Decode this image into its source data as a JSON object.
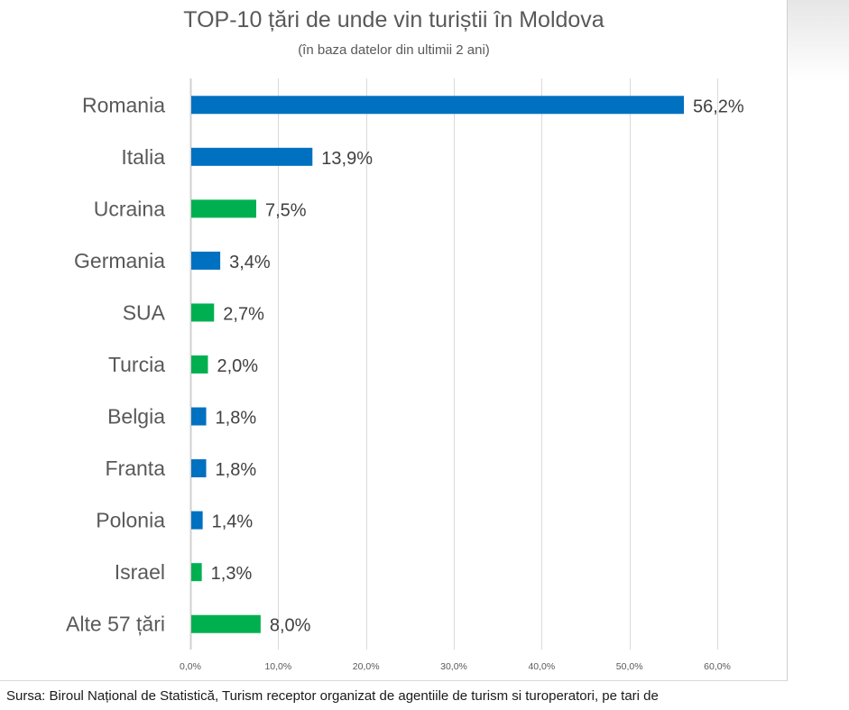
{
  "chart_data": {
    "type": "bar",
    "orientation": "horizontal",
    "title": "TOP-10 țări de unde vin turiștii în Moldova",
    "subtitle": "(în baza datelor din ultimii 2 ani)",
    "xlabel": "",
    "ylabel": "",
    "xlim": [
      0,
      60
    ],
    "grid": true,
    "x_ticks": [
      "0,0%",
      "10,0%",
      "20,0%",
      "30,0%",
      "40,0%",
      "50,0%",
      "60,0%"
    ],
    "x_tick_values": [
      0,
      10,
      20,
      30,
      40,
      50,
      60
    ],
    "categories": [
      "Romania",
      "Italia",
      "Ucraina",
      "Germania",
      "SUA",
      "Turcia",
      "Belgia",
      "Franta",
      "Polonia",
      "Israel",
      "Alte 57 țări"
    ],
    "values": [
      56.2,
      13.9,
      7.5,
      3.4,
      2.7,
      2.0,
      1.8,
      1.8,
      1.4,
      1.3,
      8.0
    ],
    "data_labels": [
      "56,2%",
      "13,9%",
      "7,5%",
      "3,4%",
      "2,7%",
      "2,0%",
      "1,8%",
      "1,8%",
      "1,4%",
      "1,3%",
      "8,0%"
    ],
    "bar_colors": [
      "#0070C0",
      "#0070C0",
      "#00B050",
      "#0070C0",
      "#00B050",
      "#00B050",
      "#0070C0",
      "#0070C0",
      "#0070C0",
      "#00B050",
      "#00B050"
    ]
  },
  "source_note": "Sursa: Biroul Național de Statistică, Turism receptor organizat de agentiile de turism si turoperatori, pe tari de"
}
